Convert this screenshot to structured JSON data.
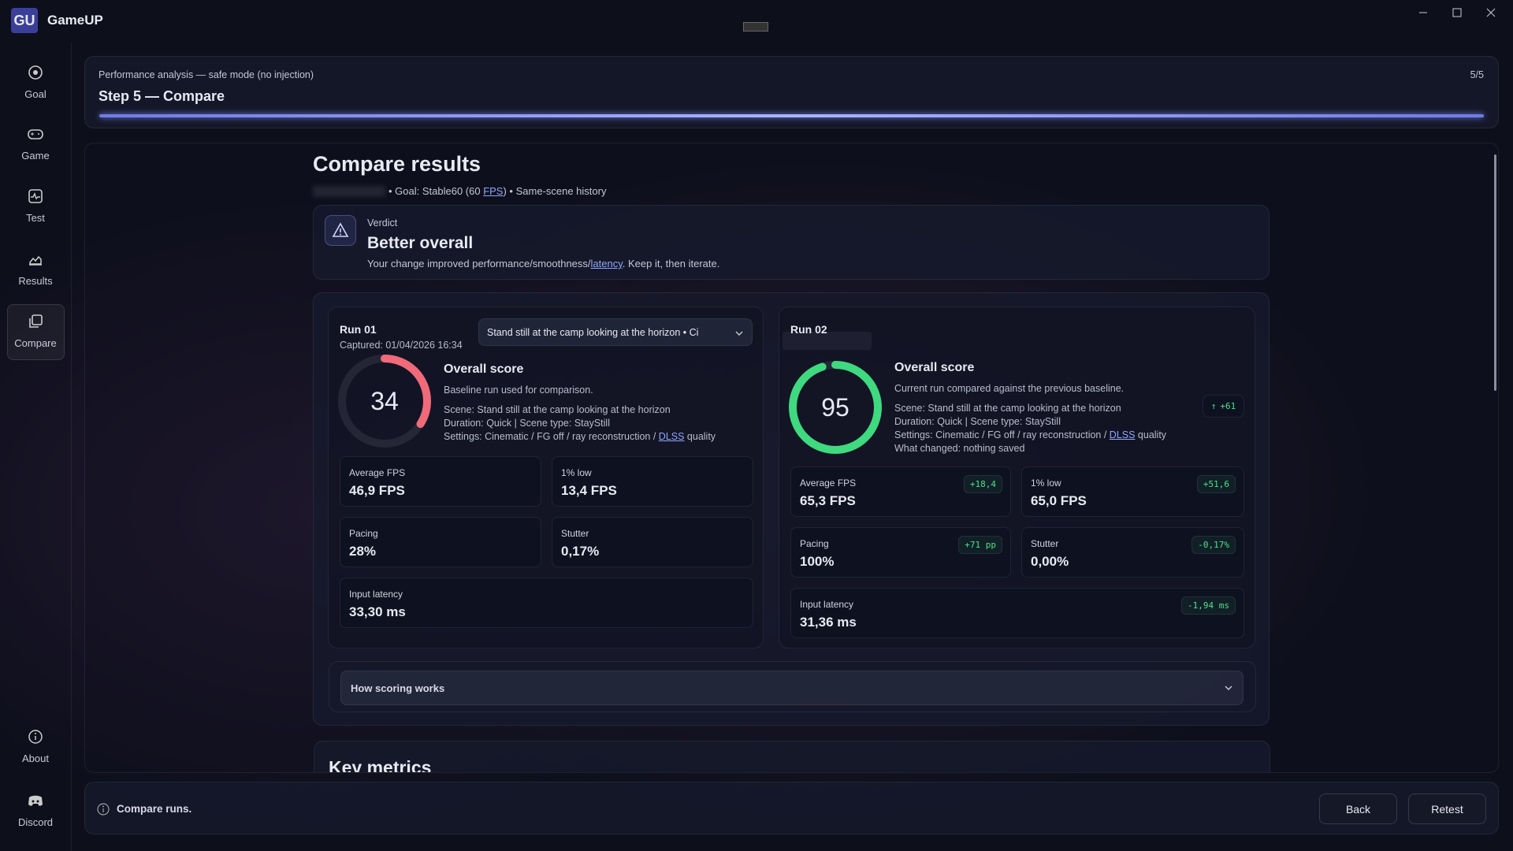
{
  "titlebar": {
    "logo": "GU",
    "app_name": "GameUP"
  },
  "sidebar": {
    "items": [
      "Goal",
      "Game",
      "Test",
      "Results",
      "Compare"
    ],
    "footer_items": [
      "About",
      "Discord"
    ]
  },
  "step": {
    "subtitle": "Performance analysis — safe mode (no injection)",
    "title": "Step 5 — Compare",
    "counter": "5/5"
  },
  "page": {
    "title": "Compare results",
    "meta": [
      "• Goal: Stable60 (60 ",
      "FPS",
      ") • Same-scene history"
    ]
  },
  "verdict": {
    "label": "Verdict",
    "title": "Better overall",
    "text": [
      "Your change improved performance/smoothness/",
      "latency",
      ". Keep it, then iterate."
    ]
  },
  "runs": [
    {
      "name": "Run 01",
      "captured": "Captured: 01/04/2026 16:34",
      "scene_select": "Stand still at the camp looking at the horizon • Ci",
      "score": 34,
      "score_title": "Overall score",
      "description": "Baseline run used for comparison.",
      "details": [
        "Scene: Stand still at the camp looking at the horizon",
        "Duration: Quick | Scene type: StayStill"
      ],
      "settings": [
        "Settings: Cinematic / FG off / ray reconstruction / ",
        "DLSS",
        " quality"
      ],
      "metrics": [
        {
          "label": "Average FPS",
          "value": "46,9 FPS"
        },
        {
          "label": "1% low",
          "value": "13,4 FPS"
        },
        {
          "label": "Pacing",
          "value": "28%"
        },
        {
          "label": "Stutter",
          "value": "0,17%"
        },
        {
          "label": "Input latency",
          "value": "33,30 ms"
        }
      ]
    },
    {
      "name": "Run 02",
      "score": 95,
      "score_delta": "+61",
      "score_title": "Overall score",
      "description": "Current run compared against the previous baseline.",
      "details": [
        "Scene: Stand still at the camp looking at the horizon",
        "Duration: Quick | Scene type: StayStill"
      ],
      "settings": [
        "Settings: Cinematic / FG off / ray reconstruction / ",
        "DLSS",
        " quality"
      ],
      "changed": "What changed: nothing saved",
      "metrics": [
        {
          "label": "Average FPS",
          "value": "65,3 FPS",
          "delta": "+18,4"
        },
        {
          "label": "1% low",
          "value": "65,0 FPS",
          "delta": "+51,6"
        },
        {
          "label": "Pacing",
          "value": "100%",
          "delta": "+71 pp"
        },
        {
          "label": "Stutter",
          "value": "0,00%",
          "delta": "-0,17%"
        },
        {
          "label": "Input latency",
          "value": "31,36 ms",
          "delta": "-1,94 ms"
        }
      ]
    }
  ],
  "scoring": {
    "label": "How scoring works"
  },
  "key_metrics": {
    "title": "Key metrics"
  },
  "footer": {
    "status": "Compare runs.",
    "buttons": [
      "Back",
      "Retest"
    ]
  }
}
